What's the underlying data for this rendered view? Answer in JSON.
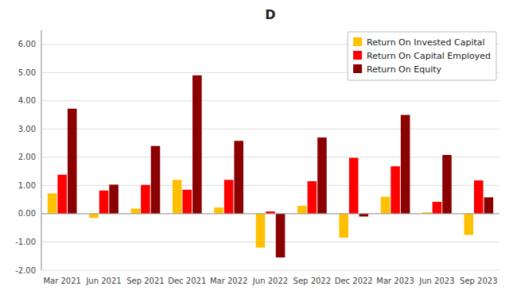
{
  "chart_data": {
    "type": "bar",
    "title": "D",
    "categories": [
      "Mar 2021",
      "Jun 2021",
      "Sep 2021",
      "Dec 2021",
      "Mar 2022",
      "Jun 2022",
      "Sep 2022",
      "Dec 2022",
      "Mar 2023",
      "Jun 2023",
      "Sep 2023"
    ],
    "series": [
      {
        "name": "Return On Invested Capital",
        "color": "#FFC000",
        "values": [
          0.72,
          -0.15,
          0.18,
          1.2,
          0.22,
          -1.2,
          0.28,
          -0.85,
          0.6,
          0.05,
          -0.75
        ]
      },
      {
        "name": "Return On Capital Employed",
        "color": "#FF0000",
        "values": [
          1.38,
          0.82,
          1.02,
          0.85,
          1.2,
          0.08,
          1.15,
          1.98,
          1.68,
          0.42,
          1.18
        ]
      },
      {
        "name": "Return On Equity",
        "color": "#8B0000",
        "values": [
          3.72,
          1.03,
          2.4,
          4.9,
          2.58,
          -1.55,
          2.7,
          -0.1,
          3.5,
          2.08,
          0.58
        ]
      }
    ],
    "ylim": [
      -2.0,
      6.5
    ],
    "yticks": [
      {
        "value": -2.0,
        "label": "-2.00"
      },
      {
        "value": -1.0,
        "label": "-1.00"
      },
      {
        "value": 0.0,
        "label": "0.00"
      },
      {
        "value": 1.0,
        "label": "1.00"
      },
      {
        "value": 2.0,
        "label": "2.00"
      },
      {
        "value": 3.0,
        "label": "3.00"
      },
      {
        "value": 4.0,
        "label": "4.00"
      },
      {
        "value": 5.0,
        "label": "5.00"
      },
      {
        "value": 6.0,
        "label": "6.00"
      }
    ],
    "grid": true,
    "legend": "upper right"
  }
}
